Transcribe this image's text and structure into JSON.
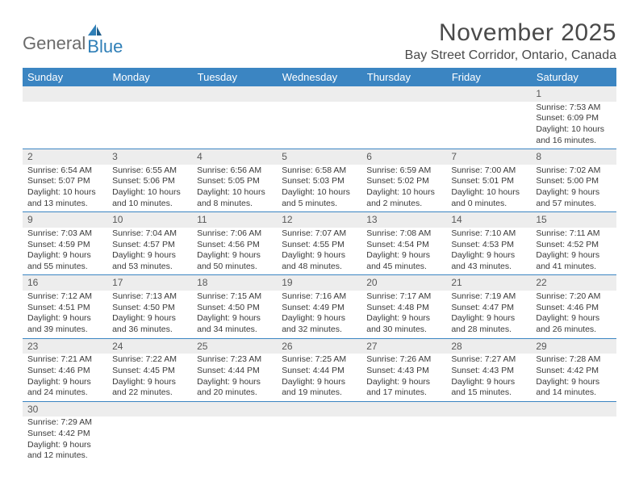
{
  "logo": {
    "word1": "General",
    "word2": "Blue"
  },
  "title": "November 2025",
  "location": "Bay Street Corridor, Ontario, Canada",
  "header_bg": "#3b85c2",
  "days_of_week": [
    "Sunday",
    "Monday",
    "Tuesday",
    "Wednesday",
    "Thursday",
    "Friday",
    "Saturday"
  ],
  "weeks": [
    [
      null,
      null,
      null,
      null,
      null,
      null,
      {
        "n": "1",
        "sunrise": "Sunrise: 7:53 AM",
        "sunset": "Sunset: 6:09 PM",
        "day1": "Daylight: 10 hours",
        "day2": "and 16 minutes."
      }
    ],
    [
      {
        "n": "2",
        "sunrise": "Sunrise: 6:54 AM",
        "sunset": "Sunset: 5:07 PM",
        "day1": "Daylight: 10 hours",
        "day2": "and 13 minutes."
      },
      {
        "n": "3",
        "sunrise": "Sunrise: 6:55 AM",
        "sunset": "Sunset: 5:06 PM",
        "day1": "Daylight: 10 hours",
        "day2": "and 10 minutes."
      },
      {
        "n": "4",
        "sunrise": "Sunrise: 6:56 AM",
        "sunset": "Sunset: 5:05 PM",
        "day1": "Daylight: 10 hours",
        "day2": "and 8 minutes."
      },
      {
        "n": "5",
        "sunrise": "Sunrise: 6:58 AM",
        "sunset": "Sunset: 5:03 PM",
        "day1": "Daylight: 10 hours",
        "day2": "and 5 minutes."
      },
      {
        "n": "6",
        "sunrise": "Sunrise: 6:59 AM",
        "sunset": "Sunset: 5:02 PM",
        "day1": "Daylight: 10 hours",
        "day2": "and 2 minutes."
      },
      {
        "n": "7",
        "sunrise": "Sunrise: 7:00 AM",
        "sunset": "Sunset: 5:01 PM",
        "day1": "Daylight: 10 hours",
        "day2": "and 0 minutes."
      },
      {
        "n": "8",
        "sunrise": "Sunrise: 7:02 AM",
        "sunset": "Sunset: 5:00 PM",
        "day1": "Daylight: 9 hours",
        "day2": "and 57 minutes."
      }
    ],
    [
      {
        "n": "9",
        "sunrise": "Sunrise: 7:03 AM",
        "sunset": "Sunset: 4:59 PM",
        "day1": "Daylight: 9 hours",
        "day2": "and 55 minutes."
      },
      {
        "n": "10",
        "sunrise": "Sunrise: 7:04 AM",
        "sunset": "Sunset: 4:57 PM",
        "day1": "Daylight: 9 hours",
        "day2": "and 53 minutes."
      },
      {
        "n": "11",
        "sunrise": "Sunrise: 7:06 AM",
        "sunset": "Sunset: 4:56 PM",
        "day1": "Daylight: 9 hours",
        "day2": "and 50 minutes."
      },
      {
        "n": "12",
        "sunrise": "Sunrise: 7:07 AM",
        "sunset": "Sunset: 4:55 PM",
        "day1": "Daylight: 9 hours",
        "day2": "and 48 minutes."
      },
      {
        "n": "13",
        "sunrise": "Sunrise: 7:08 AM",
        "sunset": "Sunset: 4:54 PM",
        "day1": "Daylight: 9 hours",
        "day2": "and 45 minutes."
      },
      {
        "n": "14",
        "sunrise": "Sunrise: 7:10 AM",
        "sunset": "Sunset: 4:53 PM",
        "day1": "Daylight: 9 hours",
        "day2": "and 43 minutes."
      },
      {
        "n": "15",
        "sunrise": "Sunrise: 7:11 AM",
        "sunset": "Sunset: 4:52 PM",
        "day1": "Daylight: 9 hours",
        "day2": "and 41 minutes."
      }
    ],
    [
      {
        "n": "16",
        "sunrise": "Sunrise: 7:12 AM",
        "sunset": "Sunset: 4:51 PM",
        "day1": "Daylight: 9 hours",
        "day2": "and 39 minutes."
      },
      {
        "n": "17",
        "sunrise": "Sunrise: 7:13 AM",
        "sunset": "Sunset: 4:50 PM",
        "day1": "Daylight: 9 hours",
        "day2": "and 36 minutes."
      },
      {
        "n": "18",
        "sunrise": "Sunrise: 7:15 AM",
        "sunset": "Sunset: 4:50 PM",
        "day1": "Daylight: 9 hours",
        "day2": "and 34 minutes."
      },
      {
        "n": "19",
        "sunrise": "Sunrise: 7:16 AM",
        "sunset": "Sunset: 4:49 PM",
        "day1": "Daylight: 9 hours",
        "day2": "and 32 minutes."
      },
      {
        "n": "20",
        "sunrise": "Sunrise: 7:17 AM",
        "sunset": "Sunset: 4:48 PM",
        "day1": "Daylight: 9 hours",
        "day2": "and 30 minutes."
      },
      {
        "n": "21",
        "sunrise": "Sunrise: 7:19 AM",
        "sunset": "Sunset: 4:47 PM",
        "day1": "Daylight: 9 hours",
        "day2": "and 28 minutes."
      },
      {
        "n": "22",
        "sunrise": "Sunrise: 7:20 AM",
        "sunset": "Sunset: 4:46 PM",
        "day1": "Daylight: 9 hours",
        "day2": "and 26 minutes."
      }
    ],
    [
      {
        "n": "23",
        "sunrise": "Sunrise: 7:21 AM",
        "sunset": "Sunset: 4:46 PM",
        "day1": "Daylight: 9 hours",
        "day2": "and 24 minutes."
      },
      {
        "n": "24",
        "sunrise": "Sunrise: 7:22 AM",
        "sunset": "Sunset: 4:45 PM",
        "day1": "Daylight: 9 hours",
        "day2": "and 22 minutes."
      },
      {
        "n": "25",
        "sunrise": "Sunrise: 7:23 AM",
        "sunset": "Sunset: 4:44 PM",
        "day1": "Daylight: 9 hours",
        "day2": "and 20 minutes."
      },
      {
        "n": "26",
        "sunrise": "Sunrise: 7:25 AM",
        "sunset": "Sunset: 4:44 PM",
        "day1": "Daylight: 9 hours",
        "day2": "and 19 minutes."
      },
      {
        "n": "27",
        "sunrise": "Sunrise: 7:26 AM",
        "sunset": "Sunset: 4:43 PM",
        "day1": "Daylight: 9 hours",
        "day2": "and 17 minutes."
      },
      {
        "n": "28",
        "sunrise": "Sunrise: 7:27 AM",
        "sunset": "Sunset: 4:43 PM",
        "day1": "Daylight: 9 hours",
        "day2": "and 15 minutes."
      },
      {
        "n": "29",
        "sunrise": "Sunrise: 7:28 AM",
        "sunset": "Sunset: 4:42 PM",
        "day1": "Daylight: 9 hours",
        "day2": "and 14 minutes."
      }
    ],
    [
      {
        "n": "30",
        "sunrise": "Sunrise: 7:29 AM",
        "sunset": "Sunset: 4:42 PM",
        "day1": "Daylight: 9 hours",
        "day2": "and 12 minutes."
      },
      null,
      null,
      null,
      null,
      null,
      null
    ]
  ]
}
